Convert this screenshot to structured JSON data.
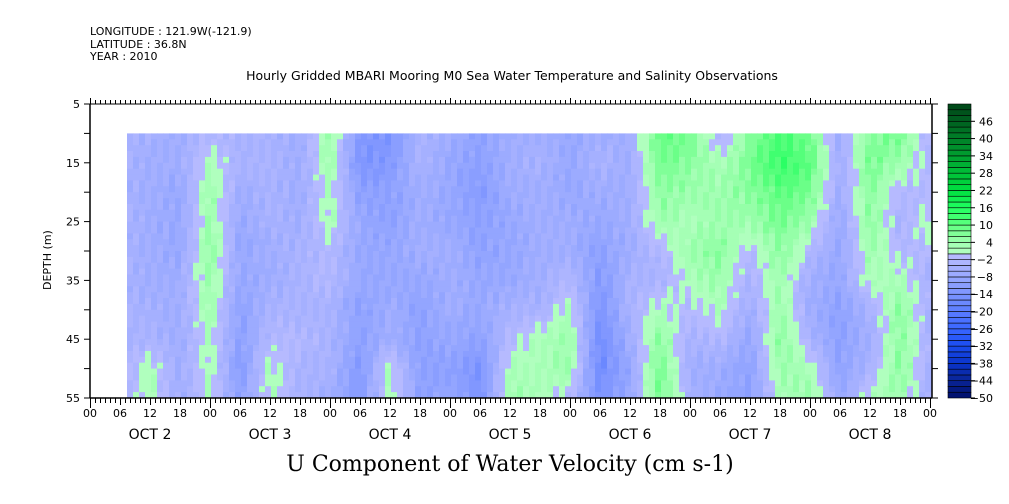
{
  "header": {
    "longitude": "LONGITUDE : 121.9W(-121.9)",
    "latitude": "LATITUDE : 36.8N",
    "year": "YEAR : 2010"
  },
  "chart_data": {
    "type": "heatmap",
    "title": "Hourly Gridded MBARI Mooring M0 Sea Water Temperature and Salinity Observations",
    "variable_title": "U Component of Water Velocity (cm s-1)",
    "ylabel": "DEPTH (m)",
    "ylim": [
      55,
      5
    ],
    "yticks": [
      5,
      15,
      25,
      35,
      45,
      55
    ],
    "xlim_hours_from_oct2_00": [
      0,
      168
    ],
    "x_hour_ticks": [
      "00",
      "06",
      "12",
      "18",
      "00",
      "06",
      "12",
      "18",
      "00",
      "06",
      "12",
      "18",
      "00",
      "06",
      "12",
      "18",
      "00",
      "06",
      "12",
      "18",
      "00",
      "06",
      "12",
      "18",
      "00",
      "06",
      "12",
      "18",
      "00"
    ],
    "day_labels": [
      "OCT  2",
      "OCT  3",
      "OCT  4",
      "OCT  5",
      "OCT  6",
      "OCT  7",
      "OCT  8"
    ],
    "colorbar": {
      "min": -50,
      "max": 52,
      "step": 2,
      "tick_labels": [
        "46",
        "40",
        "34",
        "28",
        "22",
        "16",
        "10",
        "4",
        "-2",
        "-8",
        "-14",
        "-20",
        "-26",
        "-32",
        "-38",
        "-44",
        "-50"
      ]
    },
    "depths": [
      10,
      15,
      20,
      25,
      30,
      35,
      40,
      45,
      50,
      55
    ],
    "hours": [
      6,
      12,
      18,
      24,
      30,
      36,
      42,
      48,
      54,
      60,
      66,
      72,
      78,
      84,
      90,
      96,
      102,
      108,
      114,
      120,
      126,
      132,
      138,
      144,
      150,
      156,
      162,
      168
    ],
    "values": [
      [
        -4,
        -4,
        -4,
        -4,
        -4,
        -4,
        -4,
        -4,
        -4,
        -4
      ],
      [
        -5,
        -6,
        -6,
        -6,
        -6,
        -6,
        -5,
        -4,
        2,
        2
      ],
      [
        -6,
        -6,
        -8,
        -8,
        -8,
        -6,
        -6,
        -6,
        -6,
        -6
      ],
      [
        -2,
        2,
        4,
        4,
        6,
        4,
        4,
        2,
        2,
        2
      ],
      [
        -4,
        -4,
        -6,
        -8,
        -8,
        -8,
        -10,
        -10,
        -12,
        -10
      ],
      [
        -4,
        -4,
        -4,
        -4,
        -6,
        -6,
        -4,
        -2,
        2,
        2
      ],
      [
        -6,
        -6,
        -6,
        -6,
        -4,
        -4,
        -4,
        -2,
        -4,
        -4
      ],
      [
        4,
        4,
        2,
        2,
        -2,
        -2,
        -4,
        -4,
        -4,
        -6
      ],
      [
        -12,
        -14,
        -10,
        -8,
        -8,
        -8,
        -10,
        -10,
        -12,
        -12
      ],
      [
        -14,
        -12,
        -10,
        -10,
        -8,
        -8,
        -6,
        -6,
        2,
        2
      ],
      [
        -4,
        -4,
        -6,
        -6,
        -6,
        -8,
        -10,
        -10,
        -10,
        -10
      ],
      [
        -6,
        -8,
        -8,
        -8,
        -6,
        -6,
        -6,
        -8,
        -10,
        -8
      ],
      [
        -10,
        -10,
        -12,
        -10,
        -10,
        -8,
        -8,
        -10,
        -14,
        -14
      ],
      [
        -6,
        -6,
        -6,
        -8,
        -8,
        -8,
        -4,
        -2,
        2,
        4
      ],
      [
        -6,
        -4,
        -6,
        -6,
        -6,
        -6,
        -4,
        2,
        2,
        2
      ],
      [
        -8,
        -8,
        -8,
        -6,
        -6,
        -2,
        2,
        4,
        4,
        -2
      ],
      [
        -6,
        -4,
        -6,
        -8,
        -10,
        -12,
        -14,
        -16,
        -16,
        -14
      ],
      [
        -6,
        -6,
        -6,
        -6,
        -6,
        -4,
        -4,
        -6,
        -8,
        -8
      ],
      [
        10,
        8,
        6,
        4,
        -2,
        -4,
        2,
        6,
        8,
        8
      ],
      [
        8,
        6,
        4,
        2,
        4,
        2,
        -2,
        -4,
        -6,
        -4
      ],
      [
        -4,
        2,
        4,
        4,
        6,
        4,
        2,
        -2,
        -6,
        -8
      ],
      [
        6,
        8,
        6,
        4,
        -2,
        -4,
        -6,
        -8,
        -10,
        -10
      ],
      [
        12,
        14,
        10,
        8,
        6,
        4,
        4,
        6,
        4,
        2
      ],
      [
        8,
        10,
        8,
        4,
        -2,
        -6,
        -6,
        -4,
        2,
        4
      ],
      [
        -6,
        -6,
        -6,
        -8,
        -8,
        -8,
        -10,
        -10,
        -10,
        -8
      ],
      [
        6,
        8,
        6,
        6,
        4,
        2,
        -4,
        -6,
        -4,
        2
      ],
      [
        8,
        4,
        -2,
        -4,
        -2,
        2,
        6,
        6,
        6,
        4
      ],
      [
        -4,
        -2,
        -2,
        2,
        -2,
        -4,
        -4,
        -4,
        -4,
        -6
      ]
    ]
  }
}
